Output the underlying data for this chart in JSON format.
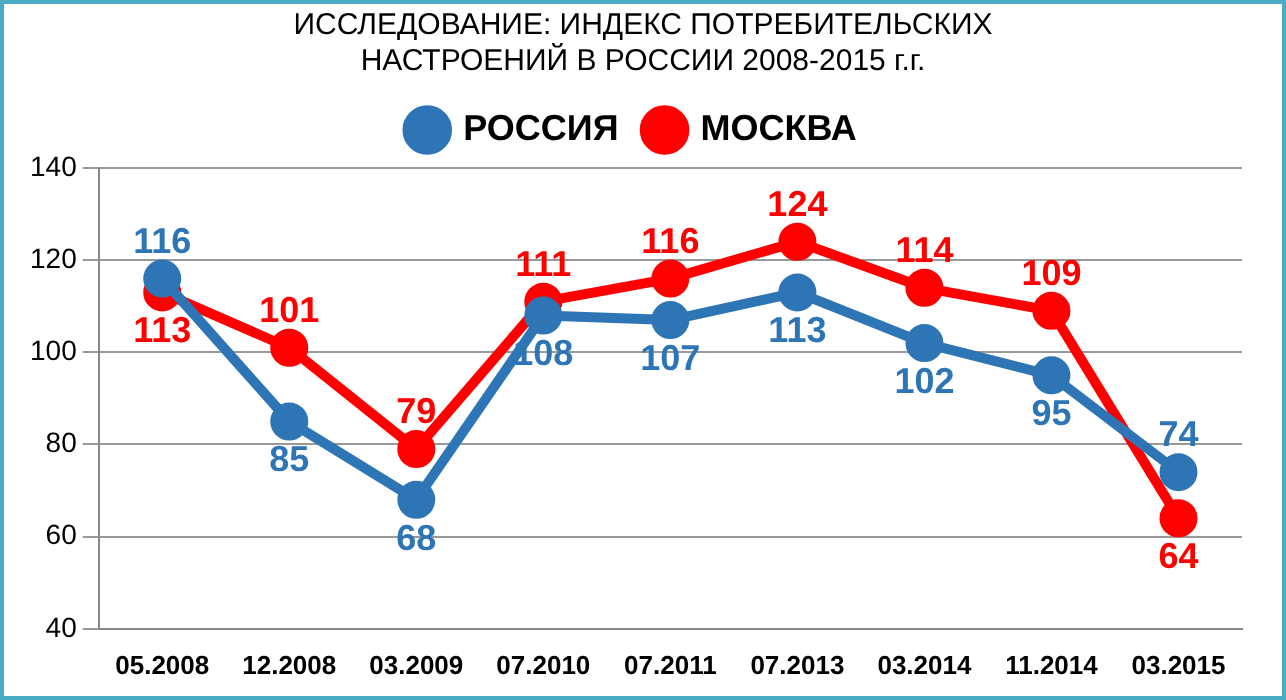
{
  "chart_data": {
    "type": "line",
    "title": "ИССЛЕДОВАНИЕ: ИНДЕКС ПОТРЕБИТЕЛЬСКИХ НАСТРОЕНИЙ В РОССИИ 2008-2015 г.г.",
    "categories": [
      "05.2008",
      "12.2008",
      "03.2009",
      "07.2010",
      "07.2011",
      "07.2013",
      "03.2014",
      "11.2014",
      "03.2015"
    ],
    "series": [
      {
        "name": "РОССИЯ",
        "color": "#2e75b6",
        "values": [
          116,
          85,
          68,
          108,
          107,
          113,
          102,
          95,
          74
        ]
      },
      {
        "name": "МОСКВА",
        "color": "#ff0000",
        "values": [
          113,
          101,
          79,
          111,
          116,
          124,
          114,
          109,
          64
        ]
      }
    ],
    "ylim": [
      40,
      140
    ],
    "yticks": [
      40,
      60,
      80,
      100,
      120,
      140
    ],
    "grid": "y",
    "legend": "top",
    "marker": "circle",
    "line_style": "solid",
    "data_labels": true
  }
}
